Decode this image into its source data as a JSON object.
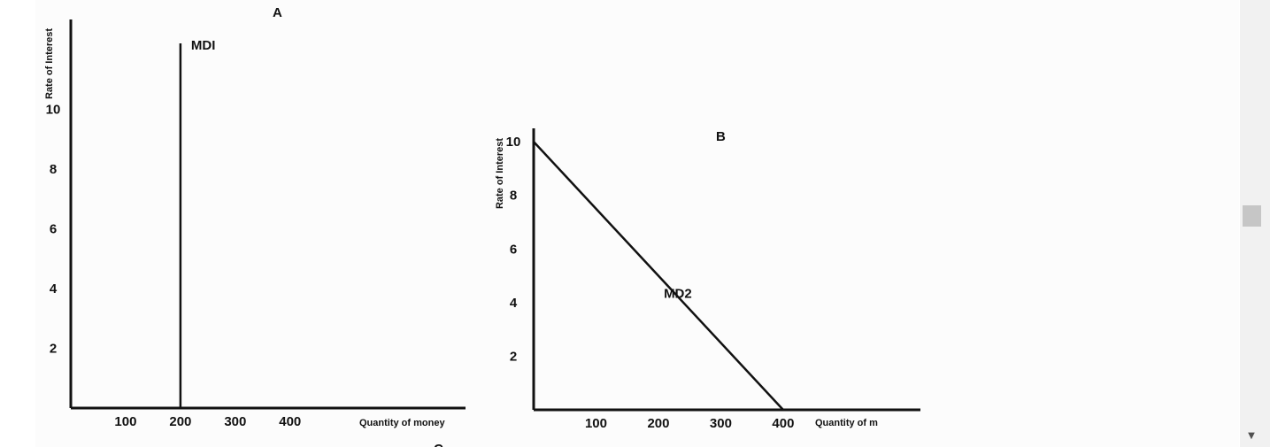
{
  "colors": {
    "axis": "#111111",
    "curve": "#111111",
    "scroll_thumb": "#c6c6c6"
  },
  "chart_data": [
    {
      "type": "line",
      "title": "A",
      "xlabel": "Quantity of money",
      "ylabel": "Rate of Interest",
      "x_ticks": [
        "100",
        "200",
        "300",
        "400"
      ],
      "y_ticks": [
        "2",
        "4",
        "6",
        "8",
        "10"
      ],
      "xlim": [
        0,
        720
      ],
      "ylim": [
        0,
        13
      ],
      "series": [
        {
          "name": "MDI",
          "x": [
            200,
            200
          ],
          "y": [
            0,
            12.2
          ]
        }
      ]
    },
    {
      "type": "line",
      "title": "B",
      "xlabel": "Quantity of m",
      "ylabel": "Rate of Interest",
      "x_ticks": [
        "100",
        "200",
        "300",
        "400"
      ],
      "y_ticks": [
        "2",
        "4",
        "6",
        "8",
        "10"
      ],
      "xlim": [
        0,
        620
      ],
      "ylim": [
        0,
        10.5
      ],
      "series": [
        {
          "name": "MD2",
          "x": [
            0,
            400
          ],
          "y": [
            10,
            0
          ]
        }
      ]
    }
  ],
  "cut_label": "C",
  "scrollbar": {
    "down_arrow": "▼"
  }
}
